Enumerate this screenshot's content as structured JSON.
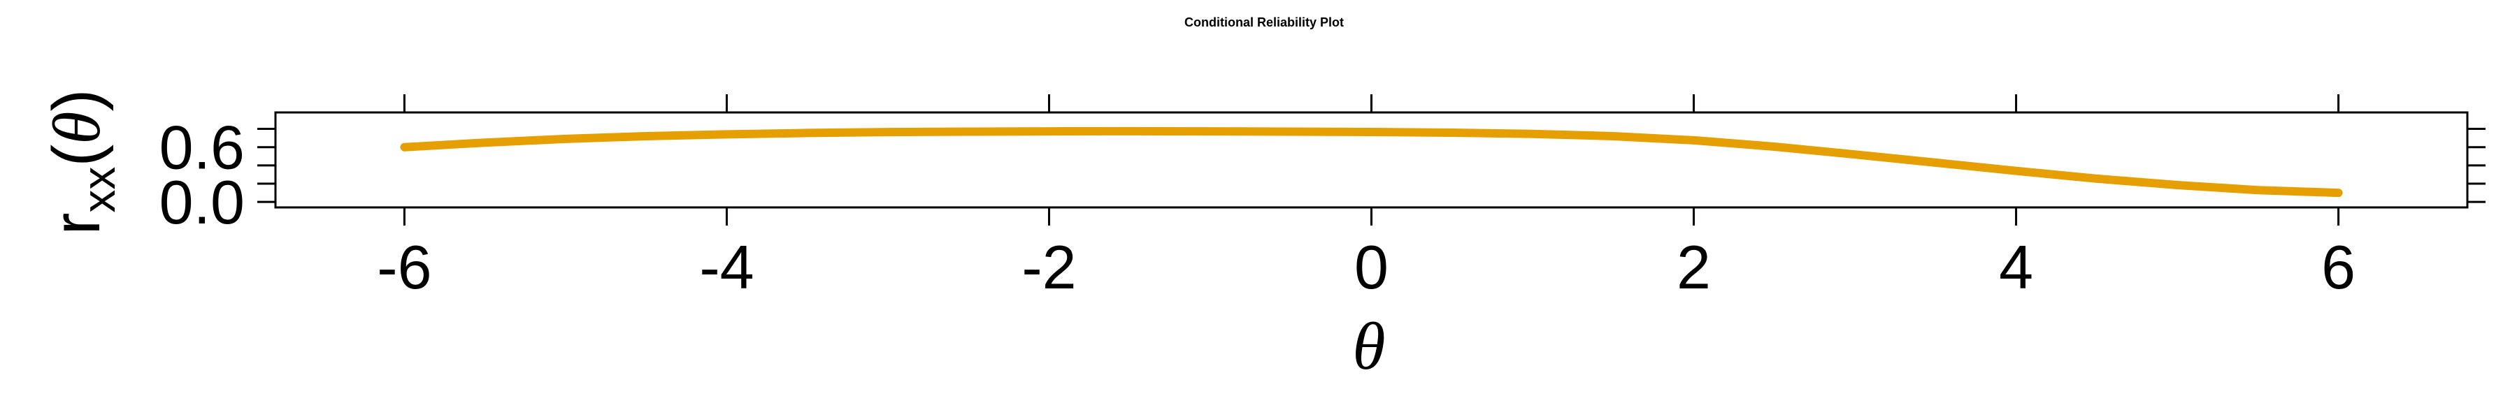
{
  "chart_data": {
    "type": "line",
    "title": "Conditional Reliability Plot",
    "xlabel": "θ",
    "ylabel": {
      "base": "r",
      "subscript": "xx",
      "open": "(",
      "var": "θ",
      "close": ")"
    },
    "xlim": [
      -6.8,
      6.8
    ],
    "ylim": [
      -0.06,
      0.98
    ],
    "x_ticks": [
      -6,
      -4,
      -2,
      0,
      2,
      4,
      6
    ],
    "x_tick_labels": [
      "-6",
      "-4",
      "-2",
      "0",
      "2",
      "4",
      "6"
    ],
    "y_ticks": [
      0.0,
      0.2,
      0.4,
      0.6,
      0.8
    ],
    "y_tick_labels": [
      "0.0",
      "0.6"
    ],
    "y_tick_label_values": [
      0.0,
      0.6
    ],
    "grid": false,
    "series": [
      {
        "color": "#E69F00",
        "x": [
          -6,
          -5.5,
          -5,
          -4.5,
          -4,
          -3.5,
          -3,
          -2.5,
          -2,
          -1.5,
          -1,
          -0.5,
          0,
          0.5,
          1,
          1.5,
          2,
          2.5,
          3,
          3.5,
          4,
          4.5,
          5,
          5.5,
          6
        ],
        "y": [
          0.6,
          0.65,
          0.69,
          0.72,
          0.74,
          0.755,
          0.765,
          0.77,
          0.773,
          0.774,
          0.773,
          0.77,
          0.766,
          0.758,
          0.745,
          0.72,
          0.675,
          0.605,
          0.52,
          0.43,
          0.34,
          0.255,
          0.185,
          0.13,
          0.1
        ]
      }
    ]
  }
}
